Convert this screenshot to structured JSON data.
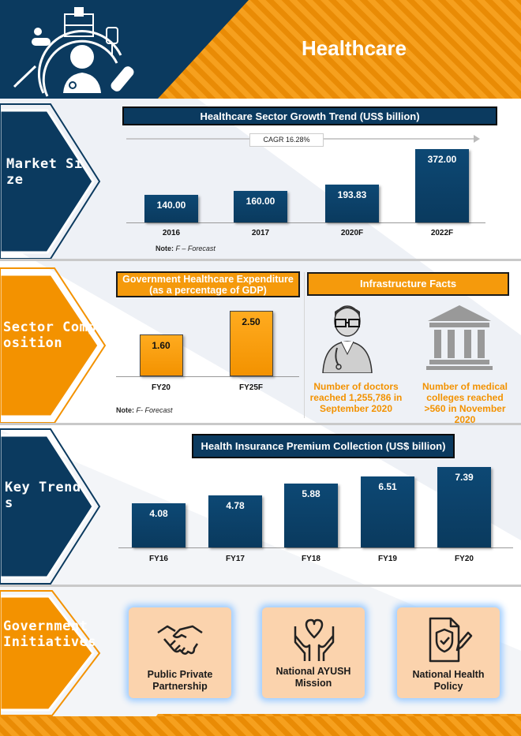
{
  "header": {
    "title": "Healthcare"
  },
  "sections": {
    "market": "Market Size",
    "sector": "Sector Composition",
    "trends": "Key Trends",
    "gov": "Government Initiatives"
  },
  "market_size": {
    "title": "Healthcare Sector Growth Trend (US$ billion)",
    "cagr": "CAGR 16.28%",
    "note_label": "Note:",
    "note_text": "F – Forecast"
  },
  "composition": {
    "expenditure_title": "Government Healthcare Expenditure (as a percentage of GDP)",
    "infra_title": "Infrastructure Facts",
    "doctors_text": "Number of doctors reached 1,255,786  in September 2020",
    "colleges_text": "Number of medical colleges reached >560 in November 2020",
    "note_label": "Note:",
    "note_text": "F- Forecast"
  },
  "trends": {
    "title": "Health Insurance Premium Collection (US$ billion)"
  },
  "initiatives": [
    {
      "label": "Public Private Partnership",
      "icon": "handshake-icon"
    },
    {
      "label": "National AYUSH Mission",
      "icon": "hands-heart-icon"
    },
    {
      "label": "National Health Policy",
      "icon": "policy-document-icon"
    }
  ],
  "colors": {
    "navy": "#0b3a5f",
    "orange": "#f39200",
    "peach": "#fbd3ad"
  },
  "chart_data": [
    {
      "type": "bar",
      "title": "Healthcare Sector Growth Trend (US$ billion)",
      "categories": [
        "2016",
        "2017",
        "2020F",
        "2022F"
      ],
      "values": [
        140.0,
        160.0,
        193.83,
        372.0
      ],
      "labels": [
        "140.00",
        "160.00",
        "193.83",
        "372.00"
      ],
      "annotation": "CAGR 16.28%",
      "ylim": [
        0,
        400
      ]
    },
    {
      "type": "bar",
      "title": "Government Healthcare Expenditure (as a percentage of GDP)",
      "categories": [
        "FY20",
        "FY25F"
      ],
      "values": [
        1.6,
        2.5
      ],
      "labels": [
        "1.60",
        "2.50"
      ],
      "ylim": [
        0,
        2.7
      ]
    },
    {
      "type": "bar",
      "title": "Health Insurance Premium Collection (US$ billion)",
      "categories": [
        "FY16",
        "FY17",
        "FY18",
        "FY19",
        "FY20"
      ],
      "values": [
        4.08,
        4.78,
        5.88,
        6.51,
        7.39
      ],
      "labels": [
        "4.08",
        "4.78",
        "5.88",
        "6.51",
        "7.39"
      ],
      "ylim": [
        0,
        7.6
      ]
    }
  ]
}
